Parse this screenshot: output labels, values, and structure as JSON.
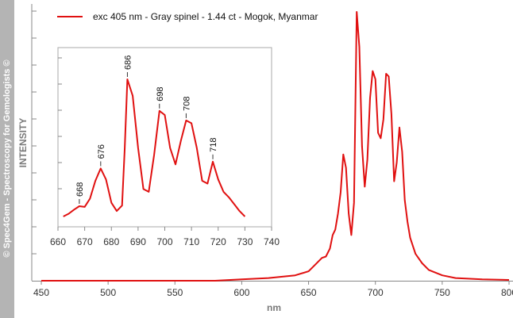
{
  "watermark": "© Spec4Gem - Spectroscopy for Gemologists ©",
  "colors": {
    "line": "#e01010",
    "axis": "#888888",
    "sidebar": "#b4b4b4"
  },
  "chart_data": [
    {
      "type": "line",
      "xlabel": "nm",
      "ylabel": "INTENSITY",
      "xlim": [
        450,
        800
      ],
      "xticks": [
        450,
        500,
        550,
        600,
        650,
        700,
        750,
        800
      ],
      "legend_position": "top-left",
      "series": [
        {
          "name": "exc 405 nm - Gray spinel - 1.44 ct - Mogok, Myanmar",
          "x": [
            450,
            500,
            550,
            580,
            600,
            620,
            640,
            650,
            655,
            660,
            663,
            666,
            668,
            670,
            672,
            674,
            676,
            678,
            680,
            682,
            684,
            686,
            688,
            690,
            692,
            694,
            696,
            698,
            700,
            702,
            704,
            706,
            708,
            710,
            712,
            714,
            716,
            718,
            720,
            722,
            724,
            726,
            730,
            735,
            740,
            750,
            760,
            780,
            800
          ],
          "y": [
            0.0,
            0.0,
            0.0,
            0.0,
            0.005,
            0.01,
            0.02,
            0.035,
            0.06,
            0.085,
            0.09,
            0.12,
            0.17,
            0.19,
            0.25,
            0.33,
            0.47,
            0.42,
            0.25,
            0.17,
            0.29,
            1.0,
            0.87,
            0.5,
            0.35,
            0.45,
            0.68,
            0.78,
            0.75,
            0.55,
            0.53,
            0.6,
            0.77,
            0.76,
            0.62,
            0.37,
            0.44,
            0.57,
            0.48,
            0.3,
            0.22,
            0.16,
            0.1,
            0.065,
            0.04,
            0.02,
            0.01,
            0.005,
            0.003
          ]
        }
      ]
    },
    {
      "type": "line",
      "xlim": [
        660,
        740
      ],
      "xticks": [
        660,
        670,
        680,
        690,
        700,
        710,
        720,
        730,
        740
      ],
      "annotations": [
        "668",
        "676",
        "686",
        "698",
        "708",
        "718"
      ],
      "annotation_x": [
        668,
        676,
        686,
        698,
        708,
        718
      ],
      "series": [
        {
          "x": [
            662,
            664,
            666,
            668,
            670,
            672,
            674,
            676,
            678,
            680,
            682,
            684,
            685,
            686,
            688,
            690,
            692,
            694,
            696,
            698,
            700,
            702,
            704,
            706,
            708,
            710,
            712,
            714,
            716,
            718,
            720,
            722,
            724,
            726,
            728,
            730
          ],
          "y": [
            0.0,
            0.02,
            0.05,
            0.075,
            0.07,
            0.13,
            0.26,
            0.35,
            0.27,
            0.1,
            0.04,
            0.08,
            0.5,
            1.0,
            0.88,
            0.5,
            0.2,
            0.18,
            0.45,
            0.77,
            0.74,
            0.5,
            0.38,
            0.55,
            0.7,
            0.68,
            0.5,
            0.26,
            0.24,
            0.4,
            0.27,
            0.18,
            0.14,
            0.09,
            0.04,
            0.0
          ]
        }
      ]
    }
  ]
}
